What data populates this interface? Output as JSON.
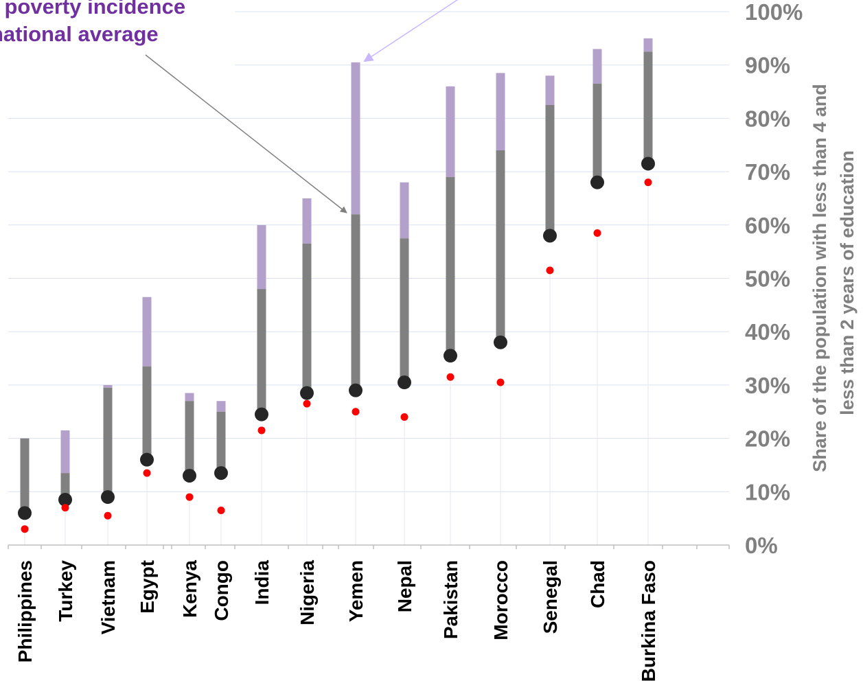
{
  "annotation": {
    "line1": "on poverty incidence",
    "line2": "national average"
  },
  "colors": {
    "gray_bar": "#808080",
    "purple_bar": "#b4a1cb",
    "black_dot": "#262626",
    "red_dot": "#ff0000",
    "grid": "#d9e1f2",
    "annotation_text": "#7030a0",
    "arrow_purple": "#c9b6ff",
    "arrow_gray": "#808080"
  },
  "chart_data": {
    "type": "range-dot",
    "title": "",
    "xlabel": "",
    "ylabel": "Share of the population with less than 4 and less than 2 years of education",
    "ylabel_lines": [
      "Share of the population with less than 4 and",
      "less than 2 years of education"
    ],
    "ylim": [
      0,
      100
    ],
    "yticks": [
      "0%",
      "10%",
      "20%",
      "30%",
      "40%",
      "50%",
      "60%",
      "70%",
      "80%",
      "90%",
      "100%"
    ],
    "grid": true,
    "categories": [
      "Philippines",
      "Turkey",
      "Vietnam",
      "Egypt",
      "Kenya",
      "Congo",
      "India",
      "Nigeria",
      "Yemen",
      "Nepal",
      "Pakistan",
      "Morocco",
      "Senegal",
      "Chad",
      "Burkina Faso"
    ],
    "series": [
      {
        "key": "red",
        "values": [
          3,
          7,
          5.5,
          13.5,
          9,
          6.5,
          21.5,
          26.5,
          25,
          24,
          31.5,
          30.5,
          51.5,
          58.5,
          68
        ]
      },
      {
        "key": "black",
        "values": [
          6,
          8.5,
          9,
          16,
          13,
          13.5,
          24.5,
          28.5,
          29,
          30.5,
          35.5,
          38,
          58,
          68,
          71.5
        ]
      },
      {
        "key": "gray_top",
        "values": [
          20,
          13.5,
          29.5,
          33.5,
          27,
          25,
          48,
          56.5,
          62,
          57.5,
          69,
          74,
          82.5,
          86.5,
          92.5
        ]
      },
      {
        "key": "purple_top",
        "values": [
          20,
          21.5,
          30,
          46.5,
          28.5,
          27,
          60,
          65,
          90.5,
          68,
          86,
          88.5,
          88,
          93,
          95
        ]
      }
    ]
  }
}
